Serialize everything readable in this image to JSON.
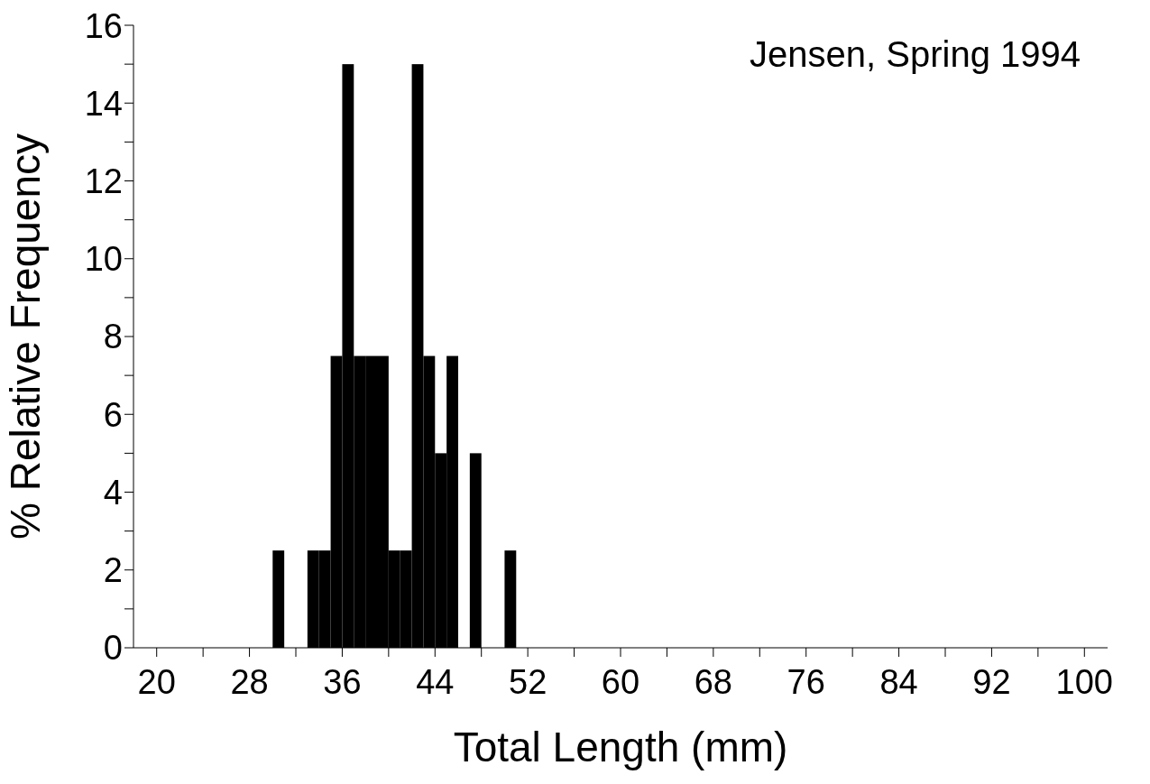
{
  "chart_data": {
    "type": "histogram",
    "xlabel": "Total Length (mm)",
    "ylabel": "% Relative Frequency",
    "annotations": [
      "Jensen, Spring 1994"
    ],
    "bins": [
      30,
      31,
      32,
      33,
      34,
      35,
      36,
      37,
      38,
      39,
      40,
      41,
      42,
      43,
      44,
      45,
      46,
      47,
      48,
      49,
      50,
      51
    ],
    "values": [
      2.5,
      0,
      0,
      2.5,
      2.5,
      7.5,
      15,
      7.5,
      7.5,
      7.5,
      2.5,
      2.5,
      15,
      7.5,
      5,
      7.5,
      0,
      5,
      0,
      0,
      2.5
    ],
    "color": "#000000",
    "xlim": [
      18,
      102
    ],
    "xticks": [
      20,
      {
        "value": 24,
        "label": null
      },
      28,
      {
        "value": 32,
        "label": null
      },
      36,
      {
        "value": 40,
        "label": null
      },
      44,
      {
        "value": 48,
        "label": null
      },
      52,
      {
        "value": 56,
        "label": null
      },
      60,
      {
        "value": 64,
        "label": null
      },
      68,
      {
        "value": 72,
        "label": null
      },
      76,
      {
        "value": 80,
        "label": null
      },
      84,
      {
        "value": 88,
        "label": null
      },
      92,
      {
        "value": 96,
        "label": null
      },
      100
    ],
    "ylim": [
      0,
      16
    ],
    "yticks": [
      0,
      {
        "value": 1,
        "label": null
      },
      2,
      {
        "value": 3,
        "label": null
      },
      4,
      {
        "value": 5,
        "label": null
      },
      6,
      {
        "value": 7,
        "label": null
      },
      8,
      {
        "value": 9,
        "label": null
      },
      10,
      {
        "value": 11,
        "label": null
      },
      12,
      {
        "value": 13,
        "label": null
      },
      14,
      {
        "value": 15,
        "label": null
      },
      16
    ],
    "grid": false
  }
}
